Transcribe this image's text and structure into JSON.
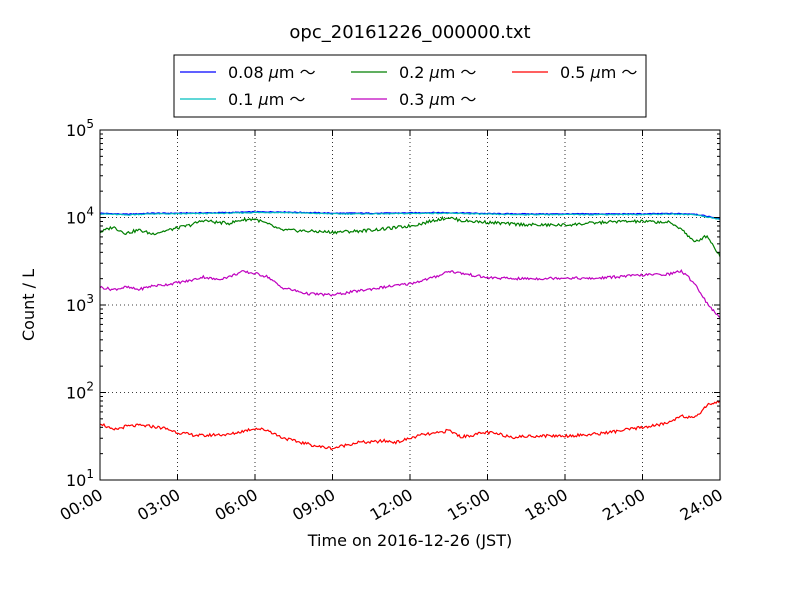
{
  "chart_data": {
    "type": "line",
    "title": "opc_20161226_000000.txt",
    "xlabel": "Time on 2016-12-26 (JST)",
    "ylabel": "Count / L",
    "x_unit": "hours",
    "xlim": [
      0,
      24
    ],
    "ylim": [
      10,
      100000
    ],
    "yscale": "log",
    "grid": true,
    "legend_position": "top",
    "x_ticks": [
      {
        "value": 0,
        "label": "00:00"
      },
      {
        "value": 3,
        "label": "03:00"
      },
      {
        "value": 6,
        "label": "06:00"
      },
      {
        "value": 9,
        "label": "09:00"
      },
      {
        "value": 12,
        "label": "12:00"
      },
      {
        "value": 15,
        "label": "15:00"
      },
      {
        "value": 18,
        "label": "18:00"
      },
      {
        "value": 21,
        "label": "21:00"
      },
      {
        "value": 24,
        "label": "24:00"
      }
    ],
    "y_ticks": [
      {
        "value": 10,
        "base": "10",
        "exp": "1"
      },
      {
        "value": 100,
        "base": "10",
        "exp": "2"
      },
      {
        "value": 1000,
        "base": "10",
        "exp": "3"
      },
      {
        "value": 10000,
        "base": "10",
        "exp": "4"
      },
      {
        "value": 100000,
        "base": "10",
        "exp": "5"
      }
    ],
    "series": [
      {
        "name": "0.08 μm ～",
        "legend_text": "0.08",
        "color": "#0000ff",
        "x": [
          0,
          1,
          2,
          3,
          4,
          5,
          6,
          7,
          8,
          9,
          10,
          11,
          12,
          13,
          14,
          15,
          16,
          17,
          18,
          19,
          20,
          21,
          22,
          23,
          24
        ],
        "y": [
          11200,
          10900,
          11200,
          11200,
          11300,
          11400,
          11600,
          11600,
          11400,
          11200,
          11200,
          11200,
          11300,
          11400,
          11300,
          11100,
          11000,
          11000,
          11000,
          11000,
          11000,
          11000,
          11100,
          11000,
          9700
        ]
      },
      {
        "name": "0.1 μm ～",
        "legend_text": "0.1",
        "color": "#00bfbf",
        "x": [
          0,
          1,
          2,
          3,
          4,
          5,
          6,
          7,
          8,
          9,
          10,
          11,
          12,
          13,
          14,
          15,
          16,
          17,
          18,
          19,
          20,
          21,
          22,
          23,
          24
        ],
        "y": [
          11000,
          10700,
          11000,
          11000,
          11100,
          11200,
          11400,
          11400,
          11200,
          11000,
          11000,
          11000,
          11100,
          11200,
          11100,
          10900,
          10800,
          10800,
          10800,
          10800,
          10800,
          10800,
          10900,
          10800,
          9500
        ]
      },
      {
        "name": "0.2 μm ～",
        "legend_text": "0.2",
        "color": "#007f00",
        "x": [
          0,
          0.5,
          1,
          1.5,
          2,
          2.5,
          3,
          3.5,
          4,
          4.5,
          5,
          5.5,
          6,
          6.5,
          7,
          8,
          9,
          10,
          11,
          12,
          12.5,
          13,
          13.5,
          14,
          15,
          16,
          17,
          18,
          19,
          20,
          21,
          22,
          22.5,
          23,
          23.5,
          24
        ],
        "y": [
          6800,
          7800,
          6600,
          7200,
          6500,
          7000,
          7600,
          8200,
          9300,
          8800,
          8600,
          9400,
          9600,
          8400,
          7200,
          7000,
          6800,
          7000,
          7400,
          8000,
          8600,
          9400,
          10000,
          9200,
          8800,
          8400,
          8200,
          8200,
          8600,
          9000,
          9000,
          8800,
          7500,
          5200,
          6200,
          3600
        ]
      },
      {
        "name": "0.3 μm ～",
        "legend_text": "0.3",
        "color": "#bf00bf",
        "x": [
          0,
          0.5,
          1,
          1.5,
          2,
          2.5,
          3,
          3.5,
          4,
          4.5,
          5,
          5.5,
          6,
          6.5,
          7,
          8,
          9,
          10,
          11,
          12,
          13,
          13.5,
          14,
          15,
          16,
          17,
          18,
          19,
          20,
          21,
          22,
          22.5,
          23,
          23.5,
          24
        ],
        "y": [
          1600,
          1500,
          1600,
          1500,
          1650,
          1700,
          1800,
          1900,
          2100,
          1950,
          2100,
          2400,
          2300,
          2100,
          1600,
          1350,
          1300,
          1450,
          1600,
          1750,
          2100,
          2450,
          2300,
          2050,
          2000,
          2000,
          2050,
          2000,
          2100,
          2200,
          2250,
          2450,
          1800,
          1050,
          700
        ]
      },
      {
        "name": "0.5 μm ～",
        "legend_text": "0.5",
        "color": "#ff0000",
        "x": [
          0,
          0.5,
          1,
          1.5,
          2,
          2.5,
          3,
          3.5,
          4,
          4.5,
          5,
          5.5,
          6,
          6.5,
          7,
          7.5,
          8,
          8.5,
          9,
          9.5,
          10,
          10.5,
          11,
          11.5,
          12,
          12.5,
          13,
          13.5,
          14,
          14.5,
          15,
          15.5,
          16,
          17,
          18,
          19,
          20,
          21,
          21.5,
          22,
          22.5,
          23,
          23.5,
          24
        ],
        "y": [
          45,
          37,
          41,
          42,
          41,
          39,
          35,
          33,
          32,
          33,
          33,
          36,
          39,
          37,
          31,
          28,
          26,
          24,
          23,
          25,
          27,
          27,
          28,
          27,
          30,
          33,
          34,
          37,
          31,
          33,
          35,
          33,
          31,
          32,
          32,
          33,
          36,
          40,
          42,
          45,
          55,
          50,
          72,
          80
        ]
      }
    ]
  }
}
